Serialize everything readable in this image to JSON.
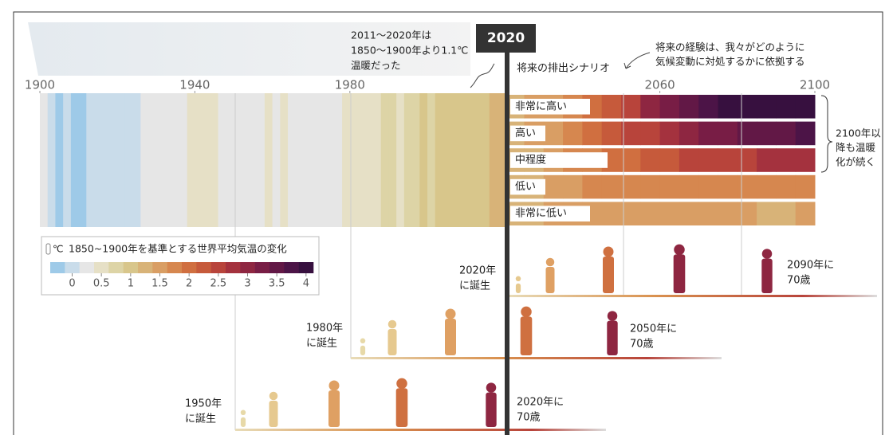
{
  "chart_data": {
    "type": "stripes",
    "xlim": [
      1900,
      2100
    ],
    "xticks": [
      1900,
      1940,
      1980,
      2020,
      2060,
      2100
    ],
    "observed": {
      "x": [
        1900,
        1902,
        1904,
        1906,
        1908,
        1910,
        1912,
        1914,
        1916,
        1918,
        1920,
        1922,
        1924,
        1926,
        1928,
        1930,
        1932,
        1934,
        1936,
        1938,
        1940,
        1942,
        1944,
        1946,
        1948,
        1950,
        1952,
        1954,
        1956,
        1958,
        1960,
        1962,
        1964,
        1966,
        1968,
        1970,
        1972,
        1974,
        1976,
        1978,
        1980,
        1982,
        1984,
        1986,
        1988,
        1990,
        1992,
        1994,
        1996,
        1998,
        2000,
        2002,
        2004,
        2006,
        2008,
        2010,
        2012,
        2014,
        2016,
        2018
      ],
      "values": [
        0.15,
        0.05,
        -0.15,
        0.0,
        -0.2,
        -0.2,
        -0.1,
        0.05,
        -0.05,
        0.0,
        0.1,
        0.05,
        0.1,
        0.2,
        0.15,
        0.25,
        0.2,
        0.3,
        0.3,
        0.4,
        0.5,
        0.45,
        0.55,
        0.35,
        0.3,
        0.2,
        0.35,
        0.25,
        0.2,
        0.4,
        0.35,
        0.4,
        0.2,
        0.3,
        0.3,
        0.35,
        0.3,
        0.3,
        0.25,
        0.45,
        0.6,
        0.5,
        0.5,
        0.6,
        0.7,
        0.75,
        0.6,
        0.7,
        0.75,
        0.95,
        0.8,
        0.95,
        0.95,
        0.95,
        0.9,
        1.05,
        1.0,
        1.05,
        1.3,
        1.2
      ]
    },
    "scenario_title": "将来の排出シナリオ",
    "scenario_x": [
      2020,
      2025,
      2030,
      2035,
      2040,
      2045,
      2050,
      2055,
      2060,
      2065,
      2070,
      2075,
      2080,
      2085,
      2090,
      2095
    ],
    "series": [
      {
        "name": "非常に高い",
        "values": [
          1.2,
          1.4,
          1.6,
          1.8,
          2.0,
          2.3,
          2.6,
          2.9,
          3.2,
          3.5,
          3.7,
          3.9,
          4.1,
          4.3,
          4.5,
          4.7
        ]
      },
      {
        "name": "高い",
        "values": [
          1.2,
          1.4,
          1.6,
          1.8,
          2.0,
          2.2,
          2.4,
          2.6,
          2.8,
          3.0,
          3.2,
          3.3,
          3.4,
          3.5,
          3.6,
          3.7
        ]
      },
      {
        "name": "中程度",
        "values": [
          1.2,
          1.35,
          1.5,
          1.7,
          1.8,
          2.0,
          2.1,
          2.2,
          2.3,
          2.4,
          2.5,
          2.6,
          2.6,
          2.7,
          2.7,
          2.8
        ]
      },
      {
        "name": "低い",
        "values": [
          1.2,
          1.35,
          1.5,
          1.6,
          1.7,
          1.75,
          1.8,
          1.8,
          1.8,
          1.8,
          1.8,
          1.8,
          1.8,
          1.8,
          1.8,
          1.8
        ]
      },
      {
        "name": "非常に低い",
        "values": [
          1.2,
          1.3,
          1.45,
          1.5,
          1.55,
          1.55,
          1.5,
          1.5,
          1.45,
          1.45,
          1.4,
          1.4,
          1.4,
          1.35,
          1.35,
          1.4
        ]
      }
    ],
    "colorbar": {
      "unit": "℃",
      "title": "1850~1900年を基準とする世界平均気温の変化",
      "clim": [
        -0.375,
        4.125
      ],
      "colors": [
        "#9ecae8",
        "#c9dcea",
        "#e6e6e6",
        "#e6e0c6",
        "#ddd4a6",
        "#d8c68b",
        "#d8b378",
        "#d99e64",
        "#d6874f",
        "#d06f40",
        "#c65a3b",
        "#b8443b",
        "#a4323e",
        "#8e2641",
        "#781d45",
        "#621846",
        "#4c1447",
        "#37103f"
      ],
      "ticks": [
        0,
        0.5,
        1,
        1.5,
        2,
        2.5,
        3,
        3.5,
        4
      ]
    },
    "note_past": [
      "2011～2020年は",
      "1850～1900年より1.1℃",
      "温暖だった"
    ],
    "note_future": [
      "将来の経験は、我々がどのように",
      "気候変動に対処するかに依拠する"
    ],
    "note_beyond": [
      "2100年以",
      "降も温暖",
      "化が続く"
    ],
    "generations": [
      {
        "born": [
          "2020年",
          "に誕生"
        ],
        "age": [
          "2090年に",
          "70歳"
        ]
      },
      {
        "born": [
          "1980年",
          "に誕生"
        ],
        "age": [
          "2050年に",
          "70歳"
        ]
      },
      {
        "born": [
          "1950年",
          "に誕生"
        ],
        "age": [
          "2020年に",
          "70歳"
        ]
      }
    ]
  }
}
